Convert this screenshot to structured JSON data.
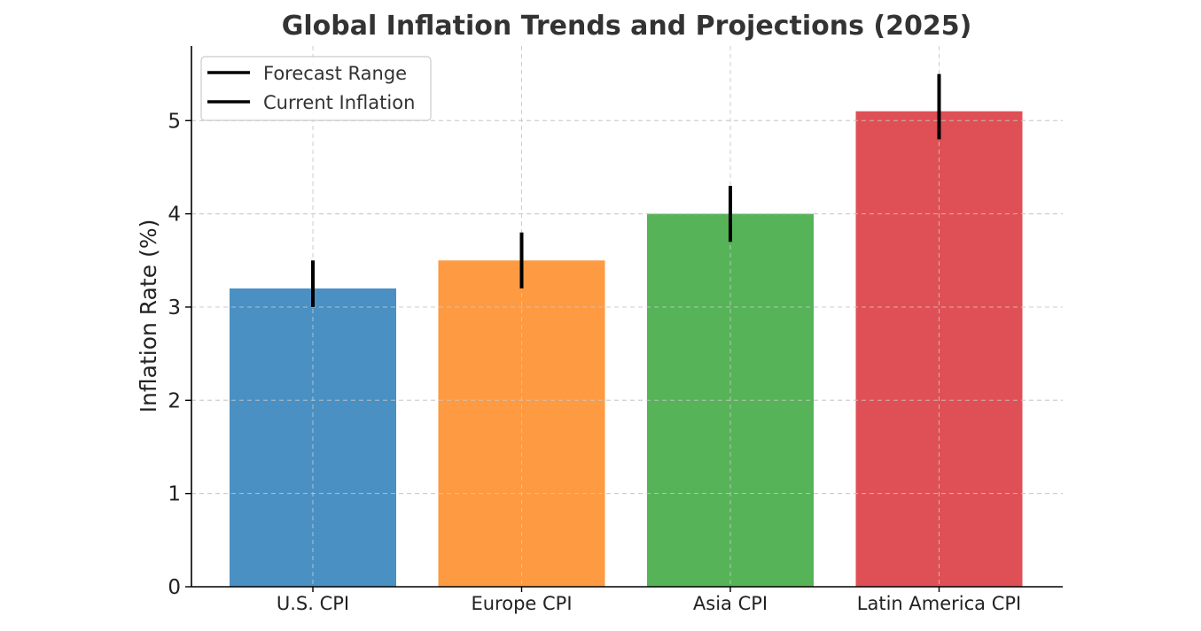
{
  "chart_data": {
    "type": "bar",
    "title": "Global Inflation Trends and Projections (2025)",
    "xlabel": "",
    "ylabel": "Inflation Rate (%)",
    "categories": [
      "U.S. CPI",
      "Europe CPI",
      "Asia CPI",
      "Latin America CPI"
    ],
    "series": [
      {
        "name": "Current Inflation",
        "values": [
          3.2,
          3.5,
          4.0,
          5.1
        ],
        "colors": [
          "#4a90c2",
          "#fd9a42",
          "#56b358",
          "#de5055"
        ]
      }
    ],
    "forecast_range": [
      [
        3.0,
        3.5
      ],
      [
        3.2,
        3.8
      ],
      [
        3.7,
        4.3
      ],
      [
        4.8,
        5.5
      ]
    ],
    "ylim": [
      0,
      5.8
    ],
    "yticks": [
      0,
      1,
      2,
      3,
      4,
      5
    ],
    "grid": true,
    "legend": {
      "position": "top-left",
      "entries": [
        "Forecast Range",
        "Current Inflation"
      ]
    }
  }
}
